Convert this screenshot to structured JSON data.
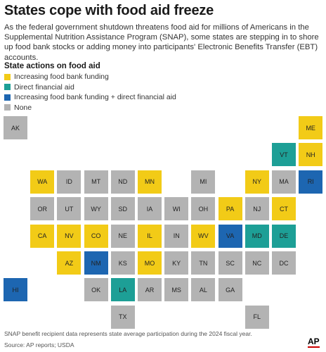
{
  "title": "States cope with food aid freeze",
  "subtitle": "As the federal government shutdown threatens food aid for millions of Americans in the Supplemental Nutrition Assistance Program (SNAP), some states are stepping in to shore up food bank stocks or adding money into participants' Electronic Benefits Transfer (EBT) accounts.",
  "legend_title": "State actions on food aid",
  "legend": [
    {
      "key": "funding",
      "label": "Increasing food bank funding",
      "color": "#f2cb17"
    },
    {
      "key": "direct",
      "label": "Direct financial aid",
      "color": "#1d9f96"
    },
    {
      "key": "both",
      "label": "Increasing food bank funding + direct financial aid",
      "color": "#1d66b1"
    },
    {
      "key": "none",
      "label": "None",
      "color": "#b3b3b3"
    }
  ],
  "states": [
    {
      "abbr": "AK",
      "category": "none",
      "col": 0,
      "row": 0
    },
    {
      "abbr": "ME",
      "category": "funding",
      "col": 11,
      "row": 0
    },
    {
      "abbr": "VT",
      "category": "direct",
      "col": 10,
      "row": 1
    },
    {
      "abbr": "NH",
      "category": "funding",
      "col": 11,
      "row": 1
    },
    {
      "abbr": "WA",
      "category": "funding",
      "col": 1,
      "row": 2
    },
    {
      "abbr": "ID",
      "category": "none",
      "col": 2,
      "row": 2
    },
    {
      "abbr": "MT",
      "category": "none",
      "col": 3,
      "row": 2
    },
    {
      "abbr": "ND",
      "category": "none",
      "col": 4,
      "row": 2
    },
    {
      "abbr": "MN",
      "category": "funding",
      "col": 5,
      "row": 2
    },
    {
      "abbr": "MI",
      "category": "none",
      "col": 7,
      "row": 2
    },
    {
      "abbr": "NY",
      "category": "funding",
      "col": 9,
      "row": 2
    },
    {
      "abbr": "MA",
      "category": "none",
      "col": 10,
      "row": 2
    },
    {
      "abbr": "RI",
      "category": "both",
      "col": 11,
      "row": 2
    },
    {
      "abbr": "OR",
      "category": "none",
      "col": 1,
      "row": 3
    },
    {
      "abbr": "UT",
      "category": "none",
      "col": 2,
      "row": 3
    },
    {
      "abbr": "WY",
      "category": "none",
      "col": 3,
      "row": 3
    },
    {
      "abbr": "SD",
      "category": "none",
      "col": 4,
      "row": 3
    },
    {
      "abbr": "IA",
      "category": "none",
      "col": 5,
      "row": 3
    },
    {
      "abbr": "WI",
      "category": "none",
      "col": 6,
      "row": 3
    },
    {
      "abbr": "OH",
      "category": "none",
      "col": 7,
      "row": 3
    },
    {
      "abbr": "PA",
      "category": "funding",
      "col": 8,
      "row": 3
    },
    {
      "abbr": "NJ",
      "category": "none",
      "col": 9,
      "row": 3
    },
    {
      "abbr": "CT",
      "category": "funding",
      "col": 10,
      "row": 3
    },
    {
      "abbr": "CA",
      "category": "funding",
      "col": 1,
      "row": 4
    },
    {
      "abbr": "NV",
      "category": "funding",
      "col": 2,
      "row": 4
    },
    {
      "abbr": "CO",
      "category": "funding",
      "col": 3,
      "row": 4
    },
    {
      "abbr": "NE",
      "category": "none",
      "col": 4,
      "row": 4
    },
    {
      "abbr": "IL",
      "category": "funding",
      "col": 5,
      "row": 4
    },
    {
      "abbr": "IN",
      "category": "none",
      "col": 6,
      "row": 4
    },
    {
      "abbr": "WV",
      "category": "funding",
      "col": 7,
      "row": 4
    },
    {
      "abbr": "VA",
      "category": "both",
      "col": 8,
      "row": 4
    },
    {
      "abbr": "MD",
      "category": "direct",
      "col": 9,
      "row": 4
    },
    {
      "abbr": "DE",
      "category": "direct",
      "col": 10,
      "row": 4
    },
    {
      "abbr": "AZ",
      "category": "funding",
      "col": 2,
      "row": 5
    },
    {
      "abbr": "NM",
      "category": "both",
      "col": 3,
      "row": 5
    },
    {
      "abbr": "KS",
      "category": "none",
      "col": 4,
      "row": 5
    },
    {
      "abbr": "MO",
      "category": "funding",
      "col": 5,
      "row": 5
    },
    {
      "abbr": "KY",
      "category": "none",
      "col": 6,
      "row": 5
    },
    {
      "abbr": "TN",
      "category": "none",
      "col": 7,
      "row": 5
    },
    {
      "abbr": "SC",
      "category": "none",
      "col": 8,
      "row": 5
    },
    {
      "abbr": "NC",
      "category": "none",
      "col": 9,
      "row": 5
    },
    {
      "abbr": "DC",
      "category": "none",
      "col": 10,
      "row": 5
    },
    {
      "abbr": "HI",
      "category": "both",
      "col": 0,
      "row": 6
    },
    {
      "abbr": "OK",
      "category": "none",
      "col": 3,
      "row": 6
    },
    {
      "abbr": "LA",
      "category": "direct",
      "col": 4,
      "row": 6
    },
    {
      "abbr": "AR",
      "category": "none",
      "col": 5,
      "row": 6
    },
    {
      "abbr": "MS",
      "category": "none",
      "col": 6,
      "row": 6
    },
    {
      "abbr": "AL",
      "category": "none",
      "col": 7,
      "row": 6
    },
    {
      "abbr": "GA",
      "category": "none",
      "col": 8,
      "row": 6
    },
    {
      "abbr": "TX",
      "category": "none",
      "col": 4,
      "row": 7
    },
    {
      "abbr": "FL",
      "category": "none",
      "col": 9,
      "row": 7
    }
  ],
  "footnote": "SNAP benefit recipient data represents state average participation during the 2024 fiscal year.",
  "source": "Source: AP reports; USDA",
  "logo": "AP"
}
